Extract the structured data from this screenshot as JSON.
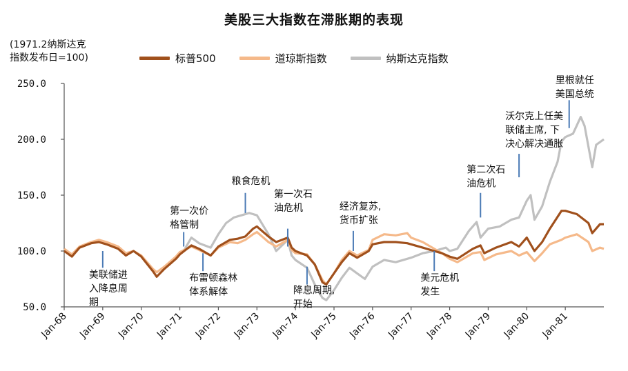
{
  "chart_data": {
    "type": "line",
    "title": "美股三大指数在滞胀期的表现",
    "unit_note": [
      "(1971.2纳斯达克",
      "指数发布日=100)"
    ],
    "xlabel": "",
    "ylabel": "",
    "ylim": [
      50,
      250
    ],
    "yticks": [
      "250.0",
      "200.0",
      "150.0",
      "100.0",
      "50.0"
    ],
    "ytick_values": [
      250,
      200,
      150,
      100,
      50
    ],
    "xlim": [
      1968.0,
      1982.0
    ],
    "xticks": [
      "Jan-68",
      "Jan-69",
      "Jan-70",
      "Jan-71",
      "Jan-72",
      "Jan-73",
      "Jan-74",
      "Jan-75",
      "Jan-76",
      "Jan-77",
      "Jan-78",
      "Jan-79",
      "Jan-80",
      "Jan-81"
    ],
    "xtick_values": [
      1968,
      1969,
      1970,
      1971,
      1972,
      1973,
      1974,
      1975,
      1976,
      1977,
      1978,
      1979,
      1980,
      1981
    ],
    "grid": false,
    "legend_position": "top",
    "series": [
      {
        "name": "标普500",
        "color": "#a0501c",
        "points": [
          [
            1968.0,
            100
          ],
          [
            1968.2,
            95
          ],
          [
            1968.4,
            103
          ],
          [
            1968.7,
            107
          ],
          [
            1968.9,
            108
          ],
          [
            1969.1,
            106
          ],
          [
            1969.4,
            102
          ],
          [
            1969.6,
            96
          ],
          [
            1969.8,
            100
          ],
          [
            1970.0,
            95
          ],
          [
            1970.3,
            82
          ],
          [
            1970.4,
            77
          ],
          [
            1970.6,
            84
          ],
          [
            1970.9,
            93
          ],
          [
            1971.0,
            97
          ],
          [
            1971.3,
            105
          ],
          [
            1971.5,
            102
          ],
          [
            1971.8,
            96
          ],
          [
            1972.0,
            104
          ],
          [
            1972.3,
            110
          ],
          [
            1972.5,
            111
          ],
          [
            1972.7,
            113
          ],
          [
            1972.9,
            120
          ],
          [
            1973.0,
            122
          ],
          [
            1973.3,
            113
          ],
          [
            1973.5,
            108
          ],
          [
            1973.8,
            112
          ],
          [
            1973.9,
            103
          ],
          [
            1974.0,
            100
          ],
          [
            1974.3,
            96
          ],
          [
            1974.5,
            88
          ],
          [
            1974.7,
            72
          ],
          [
            1974.8,
            70
          ],
          [
            1975.0,
            80
          ],
          [
            1975.2,
            90
          ],
          [
            1975.4,
            98
          ],
          [
            1975.6,
            94
          ],
          [
            1975.9,
            100
          ],
          [
            1976.0,
            106
          ],
          [
            1976.3,
            108
          ],
          [
            1976.6,
            108
          ],
          [
            1976.9,
            107
          ],
          [
            1977.0,
            106
          ],
          [
            1977.3,
            103
          ],
          [
            1977.6,
            100
          ],
          [
            1977.8,
            98
          ],
          [
            1978.0,
            95
          ],
          [
            1978.2,
            93
          ],
          [
            1978.6,
            102
          ],
          [
            1978.8,
            105
          ],
          [
            1978.9,
            98
          ],
          [
            1979.2,
            103
          ],
          [
            1979.6,
            108
          ],
          [
            1979.8,
            104
          ],
          [
            1980.0,
            112
          ],
          [
            1980.2,
            100
          ],
          [
            1980.4,
            108
          ],
          [
            1980.6,
            120
          ],
          [
            1980.9,
            136
          ],
          [
            1981.0,
            136
          ],
          [
            1981.3,
            133
          ],
          [
            1981.6,
            125
          ],
          [
            1981.7,
            116
          ],
          [
            1981.9,
            124
          ],
          [
            1982.0,
            124
          ]
        ]
      },
      {
        "name": "道琼斯指数",
        "color": "#f5b98a",
        "points": [
          [
            1968.0,
            102
          ],
          [
            1968.2,
            97
          ],
          [
            1968.4,
            104
          ],
          [
            1968.7,
            108
          ],
          [
            1968.9,
            110
          ],
          [
            1969.1,
            108
          ],
          [
            1969.4,
            104
          ],
          [
            1969.6,
            98
          ],
          [
            1969.8,
            100
          ],
          [
            1970.0,
            96
          ],
          [
            1970.3,
            84
          ],
          [
            1970.4,
            81
          ],
          [
            1970.6,
            86
          ],
          [
            1970.9,
            95
          ],
          [
            1971.0,
            99
          ],
          [
            1971.3,
            104
          ],
          [
            1971.5,
            101
          ],
          [
            1971.8,
            96
          ],
          [
            1972.0,
            103
          ],
          [
            1972.3,
            108
          ],
          [
            1972.5,
            107
          ],
          [
            1972.7,
            110
          ],
          [
            1972.9,
            115
          ],
          [
            1973.0,
            117
          ],
          [
            1973.3,
            108
          ],
          [
            1973.5,
            104
          ],
          [
            1973.8,
            110
          ],
          [
            1973.9,
            101
          ],
          [
            1974.0,
            98
          ],
          [
            1974.3,
            97
          ],
          [
            1974.5,
            88
          ],
          [
            1974.7,
            74
          ],
          [
            1974.8,
            70
          ],
          [
            1975.0,
            80
          ],
          [
            1975.2,
            92
          ],
          [
            1975.4,
            100
          ],
          [
            1975.6,
            96
          ],
          [
            1975.9,
            101
          ],
          [
            1976.0,
            110
          ],
          [
            1976.3,
            115
          ],
          [
            1976.6,
            114
          ],
          [
            1976.9,
            116
          ],
          [
            1977.0,
            112
          ],
          [
            1977.3,
            108
          ],
          [
            1977.6,
            102
          ],
          [
            1977.8,
            98
          ],
          [
            1978.0,
            93
          ],
          [
            1978.2,
            90
          ],
          [
            1978.6,
            98
          ],
          [
            1978.8,
            99
          ],
          [
            1978.9,
            92
          ],
          [
            1979.2,
            97
          ],
          [
            1979.6,
            100
          ],
          [
            1979.8,
            96
          ],
          [
            1980.0,
            99
          ],
          [
            1980.2,
            91
          ],
          [
            1980.4,
            98
          ],
          [
            1980.6,
            106
          ],
          [
            1980.9,
            110
          ],
          [
            1981.0,
            112
          ],
          [
            1981.3,
            115
          ],
          [
            1981.6,
            108
          ],
          [
            1981.7,
            100
          ],
          [
            1981.9,
            103
          ],
          [
            1982.0,
            102
          ]
        ]
      },
      {
        "name": "纳斯达克指数",
        "color": "#c0c0c0",
        "points": [
          [
            1971.1,
            100
          ],
          [
            1971.3,
            112
          ],
          [
            1971.5,
            107
          ],
          [
            1971.8,
            103
          ],
          [
            1972.0,
            115
          ],
          [
            1972.2,
            125
          ],
          [
            1972.4,
            130
          ],
          [
            1972.6,
            132
          ],
          [
            1972.8,
            134
          ],
          [
            1973.0,
            132
          ],
          [
            1973.3,
            115
          ],
          [
            1973.5,
            100
          ],
          [
            1973.8,
            110
          ],
          [
            1973.9,
            96
          ],
          [
            1974.0,
            92
          ],
          [
            1974.3,
            85
          ],
          [
            1974.5,
            70
          ],
          [
            1974.7,
            58
          ],
          [
            1974.8,
            56
          ],
          [
            1975.0,
            65
          ],
          [
            1975.2,
            76
          ],
          [
            1975.4,
            85
          ],
          [
            1975.6,
            80
          ],
          [
            1975.8,
            75
          ],
          [
            1976.0,
            86
          ],
          [
            1976.3,
            92
          ],
          [
            1976.6,
            90
          ],
          [
            1976.9,
            93
          ],
          [
            1977.0,
            94
          ],
          [
            1977.3,
            98
          ],
          [
            1977.6,
            100
          ],
          [
            1977.9,
            103
          ],
          [
            1978.0,
            100
          ],
          [
            1978.2,
            102
          ],
          [
            1978.5,
            118
          ],
          [
            1978.7,
            126
          ],
          [
            1978.8,
            112
          ],
          [
            1979.0,
            120
          ],
          [
            1979.3,
            122
          ],
          [
            1979.6,
            128
          ],
          [
            1979.8,
            130
          ],
          [
            1980.0,
            145
          ],
          [
            1980.1,
            150
          ],
          [
            1980.2,
            128
          ],
          [
            1980.4,
            140
          ],
          [
            1980.6,
            162
          ],
          [
            1980.8,
            180
          ],
          [
            1980.9,
            198
          ],
          [
            1981.0,
            202
          ],
          [
            1981.2,
            205
          ],
          [
            1981.4,
            220
          ],
          [
            1981.5,
            212
          ],
          [
            1981.7,
            175
          ],
          [
            1981.8,
            195
          ],
          [
            1982.0,
            200
          ]
        ]
      }
    ],
    "annotations": [
      {
        "lines": [
          "美联储进",
          "入降息周",
          "期"
        ],
        "x": 1969.0,
        "y_line_top": 100,
        "y_line_bottom": 85,
        "text_anchor_y": 76
      },
      {
        "lines": [
          "第一次价",
          "格管制"
        ],
        "x": 1971.1,
        "y_line_top": 117,
        "y_line_bottom": 104,
        "text_anchor_y": 133
      },
      {
        "lines": [
          "布雷顿森林",
          "体系解体"
        ],
        "x": 1971.6,
        "y_line_top": 98,
        "y_line_bottom": 82,
        "text_anchor_y": 73
      },
      {
        "lines": [
          "粮食危机"
        ],
        "x": 1972.7,
        "y_line_top": 152,
        "y_line_bottom": 134,
        "text_anchor_y": 160
      },
      {
        "lines": [
          "第一次石",
          "油危机"
        ],
        "x": 1973.8,
        "y_line_top": 120,
        "y_line_bottom": 104,
        "text_anchor_y": 148
      },
      {
        "lines": [
          "降息周期,",
          "开始"
        ],
        "x": 1974.3,
        "y_line_top": 86,
        "y_line_bottom": 70,
        "text_anchor_y": 62
      },
      {
        "lines": [
          "经济复苏,",
          "货币扩张"
        ],
        "x": 1975.5,
        "y_line_top": 118,
        "y_line_bottom": 100,
        "text_anchor_y": 137
      },
      {
        "lines": [
          "美元危机",
          "发生"
        ],
        "x": 1977.6,
        "y_line_top": 100,
        "y_line_bottom": 82,
        "text_anchor_y": 73
      },
      {
        "lines": [
          "第二次石",
          "油危机"
        ],
        "x": 1978.8,
        "y_line_top": 152,
        "y_line_bottom": 130,
        "text_anchor_y": 170
      },
      {
        "lines": [
          "沃尔克上任美",
          "联储主席, 下",
          "决心解决通胀"
        ],
        "x": 1979.8,
        "y_line_top": 187,
        "y_line_bottom": 166,
        "text_anchor_y": 218
      },
      {
        "lines": [
          "里根就任",
          "美国总统"
        ],
        "x": 1981.1,
        "y_line_top": 235,
        "y_line_bottom": 210,
        "text_anchor_y": 250
      }
    ]
  }
}
